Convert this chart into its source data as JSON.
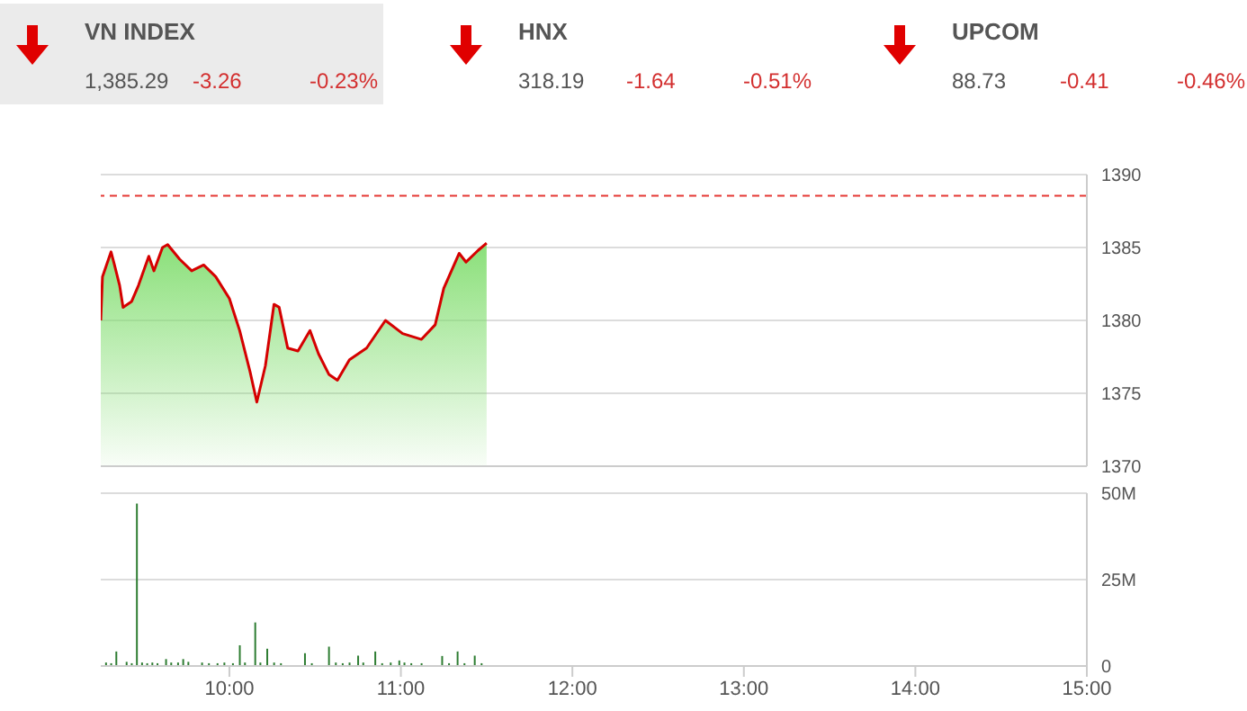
{
  "chart_data": [
    {
      "type": "area",
      "annotations": [
        "VN INDEX",
        "1,385.29",
        "-3.26",
        "-0.23%",
        "HNX",
        "318.19",
        "-1.64",
        "-0.51%",
        "UPCOM",
        "88.73",
        "-0.41",
        "-0.46%"
      ],
      "x": [
        9.25,
        9.26,
        9.31,
        9.33,
        9.36,
        9.38,
        9.43,
        9.47,
        9.53,
        9.56,
        9.61,
        9.64,
        9.71,
        9.78,
        9.85,
        9.92,
        10.0,
        10.06,
        10.12,
        10.16,
        10.21,
        10.26,
        10.29,
        10.34,
        10.4,
        10.47,
        10.52,
        10.58,
        10.63,
        10.7,
        10.8,
        10.91,
        11.01,
        11.12,
        11.2,
        11.25,
        11.34,
        11.38,
        11.45,
        11.5
      ],
      "series": [
        {
          "color": "#d50000",
          "values": [
            1380.0,
            1383.0,
            1384.7,
            1383.8,
            1382.4,
            1380.9,
            1381.3,
            1382.4,
            1384.4,
            1383.4,
            1385.0,
            1385.2,
            1384.2,
            1383.4,
            1383.8,
            1383.0,
            1381.5,
            1379.3,
            1376.5,
            1374.4,
            1376.9,
            1381.1,
            1380.9,
            1378.1,
            1377.9,
            1379.3,
            1377.7,
            1376.3,
            1375.9,
            1377.3,
            1378.1,
            1380.0,
            1379.1,
            1378.7,
            1379.7,
            1382.2,
            1384.6,
            1384.0,
            1384.8,
            1385.3
          ]
        }
      ],
      "xlim": [
        9.25,
        15
      ],
      "ylim": [
        1370,
        1390
      ],
      "yticks": [
        1370,
        1375,
        1380,
        1385,
        1390
      ],
      "grid": "y",
      "tick_labels": "y",
      "ref_lines": [
        {
          "axis": "y",
          "value": 1388.55,
          "color": "#e53935",
          "line_style": "dashed"
        }
      ]
    },
    {
      "type": "bar",
      "x": [
        9.28,
        9.31,
        9.34,
        9.4,
        9.43,
        9.46,
        9.49,
        9.52,
        9.55,
        9.58,
        9.63,
        9.66,
        9.7,
        9.73,
        9.76,
        9.84,
        9.88,
        9.93,
        9.97,
        10.02,
        10.06,
        10.09,
        10.15,
        10.18,
        10.22,
        10.26,
        10.3,
        10.44,
        10.48,
        10.58,
        10.62,
        10.66,
        10.7,
        10.75,
        10.78,
        10.85,
        10.89,
        10.94,
        10.99,
        11.02,
        11.06,
        11.12,
        11.24,
        11.28,
        11.33,
        11.37,
        11.43,
        11.47
      ],
      "values": [
        1,
        0.8,
        4.2,
        1.2,
        0.8,
        47,
        1,
        0.8,
        1,
        0.8,
        2,
        1,
        1,
        2,
        1.2,
        1,
        0.8,
        0.8,
        1,
        0.8,
        6,
        1,
        12.6,
        1,
        5,
        1,
        0.8,
        3.7,
        0.8,
        5.6,
        1,
        0.8,
        1,
        3,
        1,
        4.2,
        0.8,
        1,
        1.6,
        1,
        0.8,
        0.8,
        2.9,
        0.8,
        4.2,
        0.8,
        3,
        0.8
      ],
      "color": "#2e7d32",
      "xlim": [
        9.25,
        15
      ],
      "xticks": [
        {
          "value": 10,
          "label": "10:00"
        },
        {
          "value": 11,
          "label": "11:00"
        },
        {
          "value": 12,
          "label": "12:00"
        },
        {
          "value": 13,
          "label": "13:00"
        },
        {
          "value": 14,
          "label": "14:00"
        },
        {
          "value": 15,
          "label": "15:00"
        }
      ],
      "ylim": [
        0,
        50
      ],
      "yticks": [
        0,
        {
          "value": 25,
          "label": "25M"
        },
        {
          "value": 50,
          "label": "50M"
        }
      ],
      "grid": "y"
    }
  ]
}
